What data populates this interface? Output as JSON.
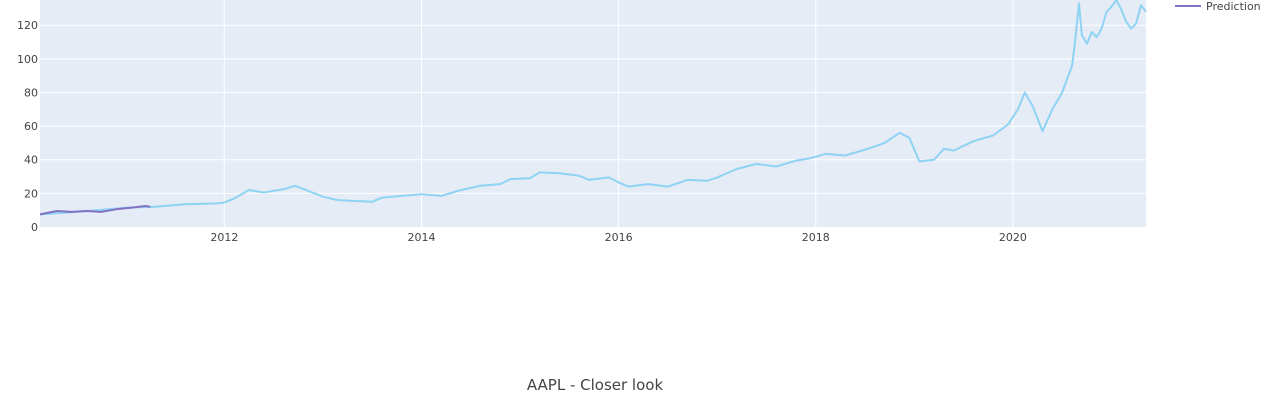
{
  "caption": "AAPL - Closer look",
  "colors": {
    "plot_bg": "#e5ecf6",
    "grid": "#ffffff",
    "actual": "#8fd3f4",
    "prediction": "#8172c4"
  },
  "chart_data": {
    "type": "line",
    "title": "",
    "xlabel": "",
    "ylabel": "",
    "xlim": [
      2010.13,
      2021.35
    ],
    "ylim": [
      0,
      135
    ],
    "x_ticks": [
      "2012",
      "2014",
      "2016",
      "2018",
      "2020"
    ],
    "y_ticks": [
      "0",
      "20",
      "40",
      "60",
      "80",
      "100",
      "120"
    ],
    "grid": true,
    "legend": {
      "position": "top-right",
      "entries": [
        "Prediction"
      ]
    },
    "series": [
      {
        "name": "",
        "color": "#8fd3f4",
        "x": [
          2010.13,
          2010.5,
          2011.0,
          2011.3,
          2011.6,
          2011.9,
          2012.0,
          2012.1,
          2012.25,
          2012.4,
          2012.6,
          2012.72,
          2012.85,
          2013.0,
          2013.15,
          2013.3,
          2013.5,
          2013.6,
          2013.8,
          2014.0,
          2014.2,
          2014.4,
          2014.6,
          2014.8,
          2014.9,
          2015.1,
          2015.2,
          2015.4,
          2015.6,
          2015.7,
          2015.9,
          2016.0,
          2016.1,
          2016.3,
          2016.5,
          2016.7,
          2016.9,
          2017.0,
          2017.2,
          2017.4,
          2017.6,
          2017.8,
          2017.95,
          2018.1,
          2018.3,
          2018.5,
          2018.7,
          2018.85,
          2018.95,
          2019.05,
          2019.2,
          2019.3,
          2019.4,
          2019.6,
          2019.8,
          2019.95,
          2020.05,
          2020.12,
          2020.2,
          2020.3,
          2020.4,
          2020.5,
          2020.55,
          2020.6,
          2020.63,
          2020.67,
          2020.7,
          2020.75,
          2020.8,
          2020.85,
          2020.9,
          2020.95,
          2021.0,
          2021.05,
          2021.1,
          2021.15,
          2021.2,
          2021.25,
          2021.3,
          2021.35
        ],
        "y": [
          7.5,
          9.0,
          11.5,
          12.0,
          13.5,
          14.0,
          14.5,
          17.0,
          22.0,
          20.5,
          22.5,
          24.5,
          21.5,
          18.0,
          16.0,
          15.5,
          15.0,
          17.5,
          18.5,
          19.5,
          18.5,
          22.0,
          24.5,
          25.5,
          28.5,
          29.0,
          32.5,
          32.0,
          30.5,
          28.0,
          29.5,
          26.5,
          24.0,
          25.5,
          24.0,
          28.0,
          27.5,
          29.5,
          34.5,
          37.5,
          36.0,
          39.5,
          41.0,
          43.5,
          42.5,
          46.0,
          50.0,
          56.0,
          53.0,
          39.0,
          40.0,
          46.5,
          45.5,
          51.0,
          54.5,
          61.0,
          70.0,
          80.0,
          72.0,
          57.0,
          70.0,
          80.0,
          88.0,
          96.0,
          110.0,
          133.0,
          114.0,
          109.0,
          116.0,
          113.0,
          118.0,
          128.0,
          131.0,
          137.0,
          129.0,
          122.0,
          118.0,
          121.0,
          132.0,
          128.0
        ]
      },
      {
        "name": "Prediction",
        "color": "#8172c4",
        "x": [
          2010.13,
          2010.3,
          2010.45,
          2010.6,
          2010.75,
          2010.9,
          2011.05,
          2011.2,
          2011.25
        ],
        "y": [
          7.5,
          9.5,
          9.0,
          9.5,
          9.0,
          10.5,
          11.5,
          12.5,
          12.0
        ]
      }
    ]
  }
}
